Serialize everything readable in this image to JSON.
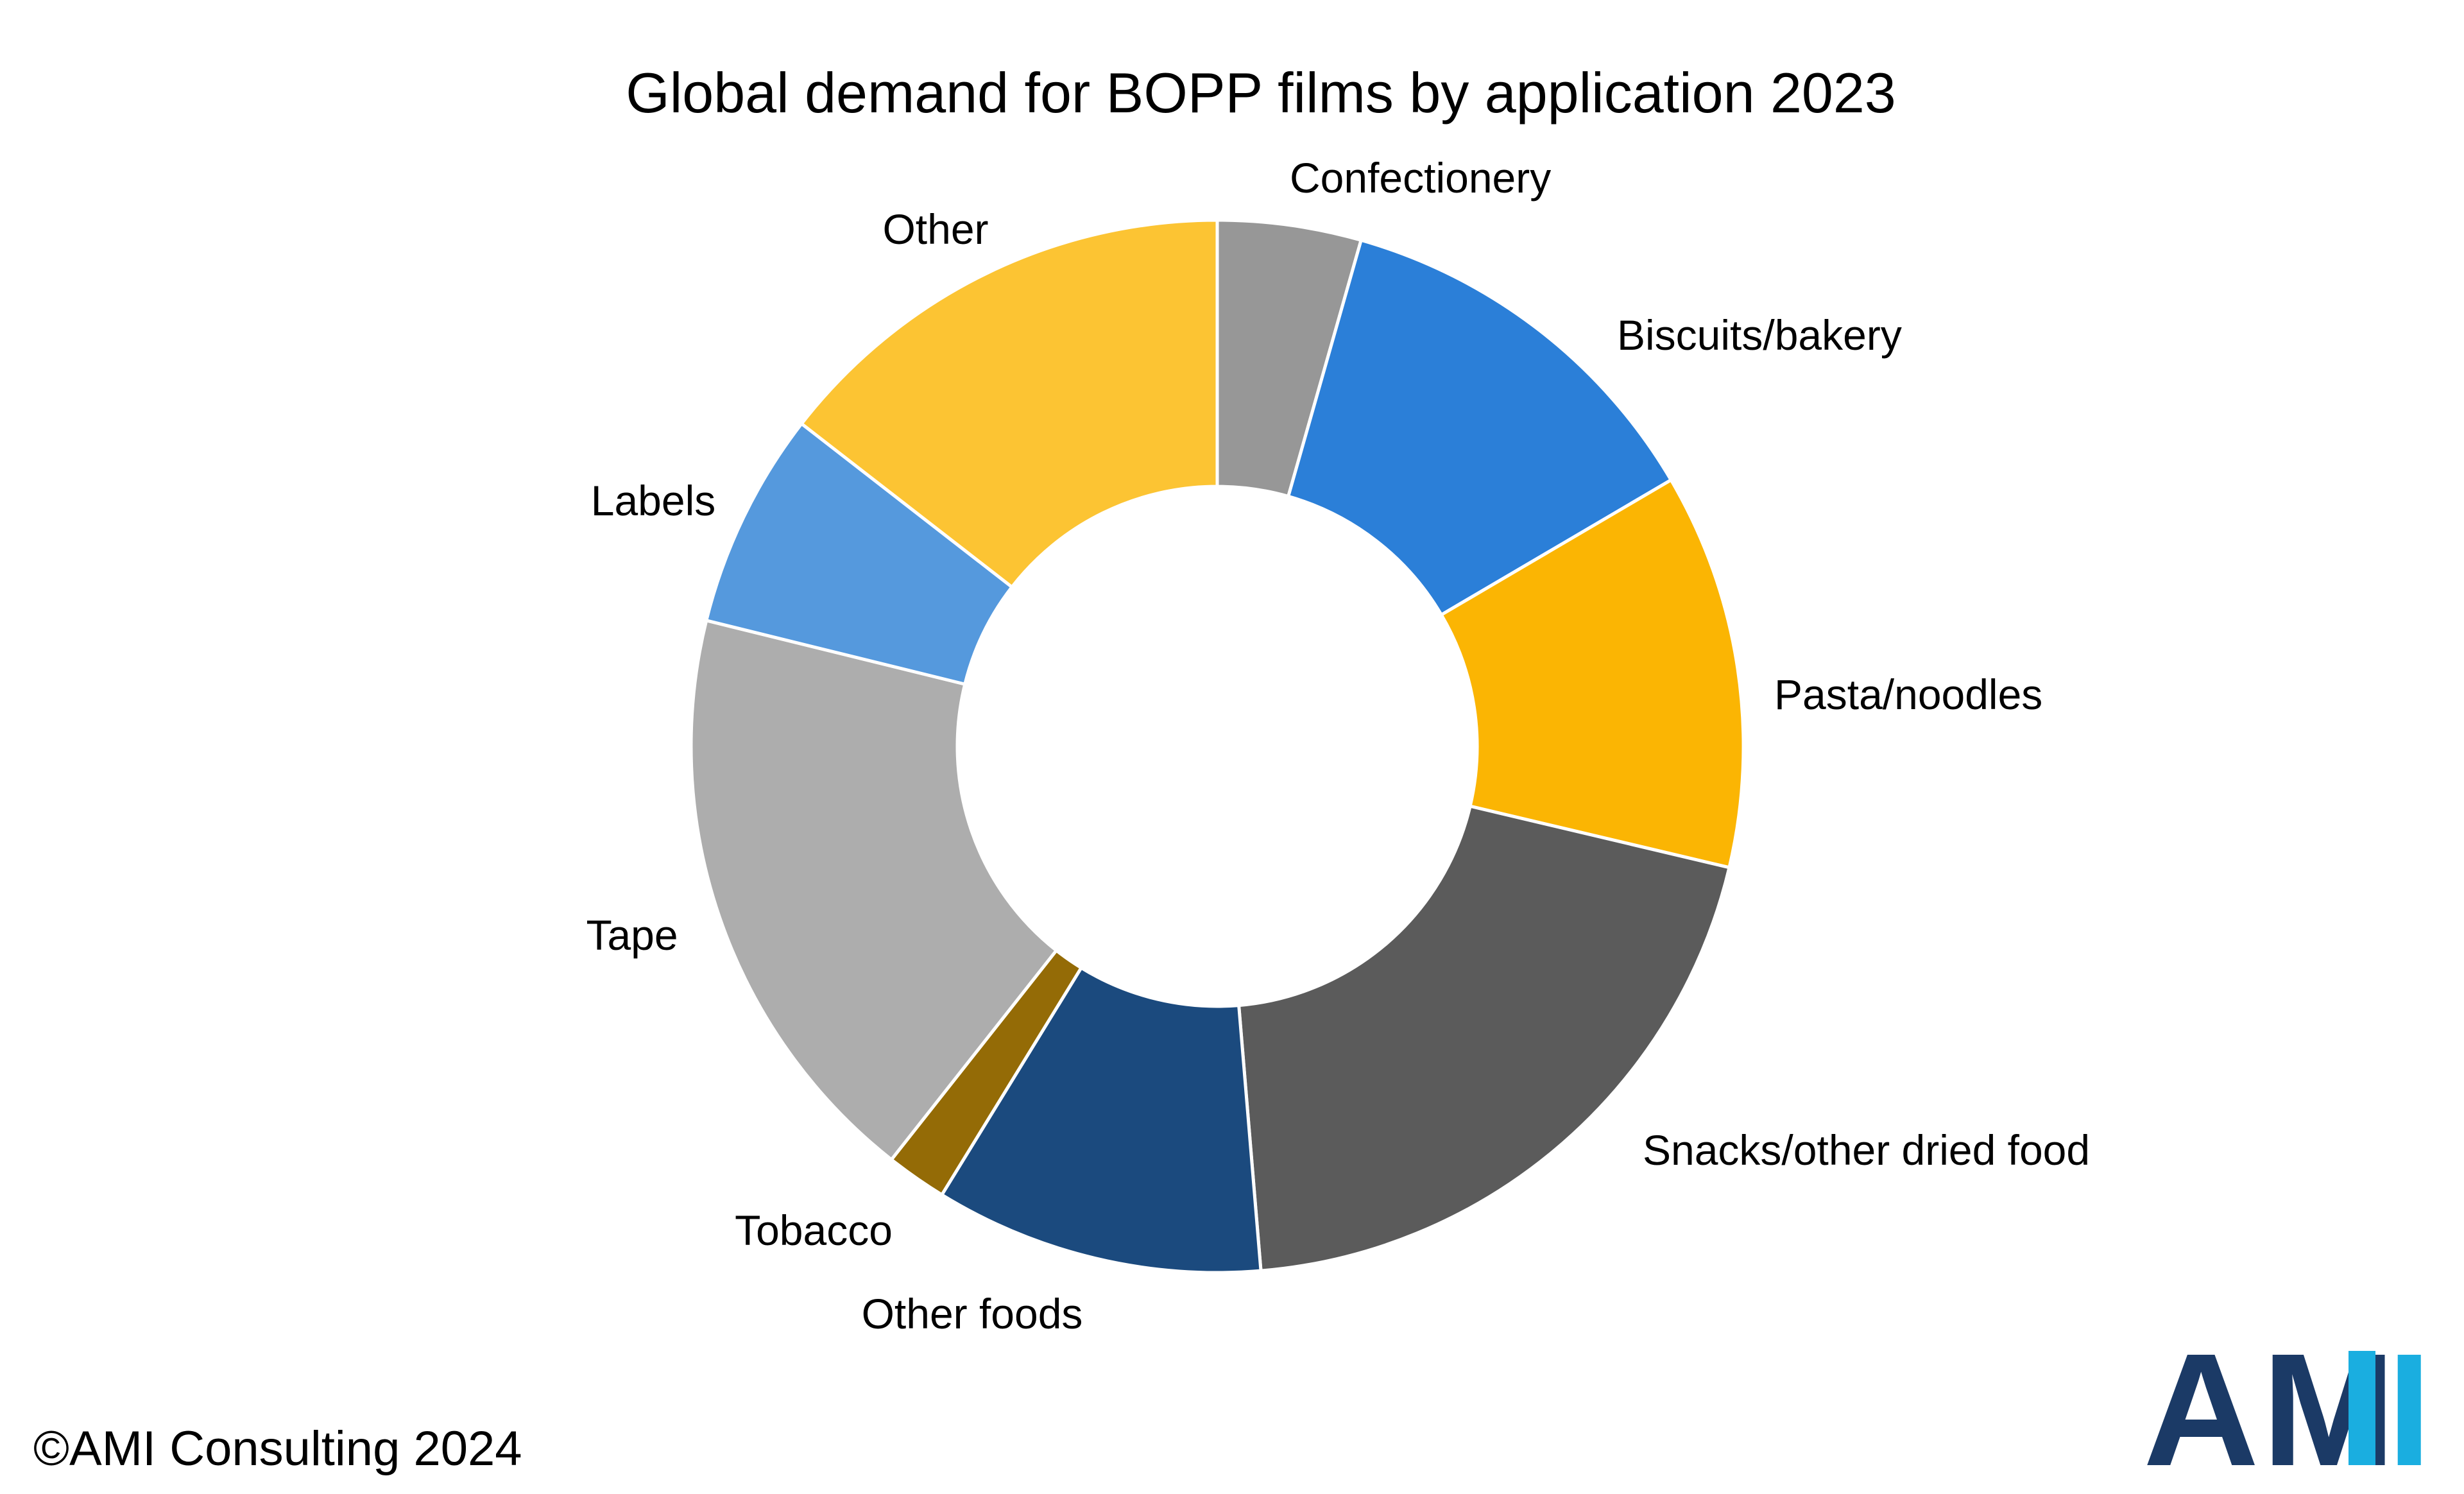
{
  "chart_data": {
    "type": "pie",
    "style": "donut",
    "title": "Global demand for BOPP films by application 2023",
    "start_angle_deg": 0,
    "direction": "clockwise",
    "slices": [
      {
        "label": "Confectionery",
        "value": 4.5,
        "color": "#979797"
      },
      {
        "label": "Biscuits/bakery",
        "value": 12.4,
        "color": "#2B7FD8"
      },
      {
        "label": "Pasta/noodles",
        "value": 12.4,
        "color": "#FBB503"
      },
      {
        "label": "Snacks/other dried food",
        "value": 20.4,
        "color": "#5B5B5B"
      },
      {
        "label": "Other foods",
        "value": 10.3,
        "color": "#1B4A7E"
      },
      {
        "label": "Tobacco",
        "value": 1.9,
        "color": "#946B06"
      },
      {
        "label": "Tape",
        "value": 18.6,
        "color": "#ADADAD"
      },
      {
        "label": "Labels",
        "value": 6.8,
        "color": "#5599DD"
      },
      {
        "label": "Other",
        "value": 14.8,
        "color": "#FCC433"
      }
    ],
    "legend": "none"
  },
  "footer": {
    "copyright": "©AMI Consulting 2024"
  },
  "logo": {
    "letters": [
      "A",
      "M",
      "I"
    ],
    "primary_color": "#1B3A66",
    "accent_color": "#1AAEE0"
  }
}
